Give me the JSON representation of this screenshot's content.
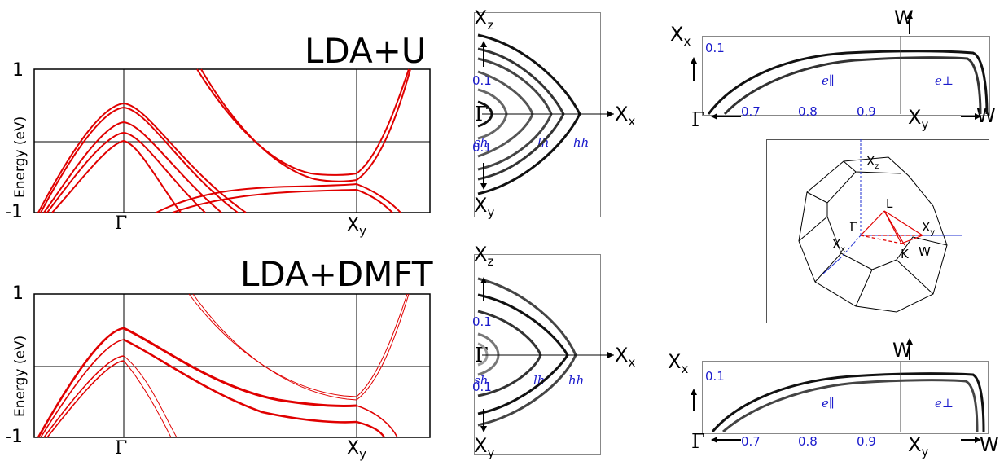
{
  "panel_top_left": {
    "title": "LDA+U",
    "ylabel": "Energy (eV)",
    "ytick_top": "1",
    "ytick_bottom": "-1",
    "xtick_gamma": "Γ",
    "xtick_x": "X",
    "xtick_x_sub": "y"
  },
  "panel_bottom_left": {
    "title": "LDA+DMFT",
    "ylabel": "Energy (eV)",
    "ytick_top": "1",
    "ytick_bottom": "-1",
    "xtick_gamma": "Γ",
    "xtick_x": "X",
    "xtick_x_sub": "y"
  },
  "panel_mid_top": {
    "top": "X",
    "top_sub": "z",
    "bottom": "X",
    "bottom_sub": "y",
    "right": "X",
    "right_sub": "x",
    "gamma": "Γ",
    "tick_upper": "0.1",
    "tick_lower": "0.1",
    "band_sh": "sh",
    "band_lh": "lh",
    "band_hh": "hh"
  },
  "panel_mid_bottom": {
    "top": "X",
    "top_sub": "z",
    "bottom": "X",
    "bottom_sub": "y",
    "right": "X",
    "right_sub": "x",
    "gamma": "Γ",
    "tick_upper": "0.1",
    "tick_lower": "0.1",
    "band_sh": "sh",
    "band_lh": "lh",
    "band_hh": "hh"
  },
  "panel_right_top": {
    "left": "X",
    "left_sub": "x",
    "top": "W",
    "ytick": "0.1",
    "gamma": "Γ",
    "xticks": [
      "0.7",
      "0.8",
      "0.9"
    ],
    "xy": "X",
    "xy_sub": "y",
    "w": "W",
    "e_par": "e∥",
    "e_perp": "e⊥"
  },
  "panel_right_bottom": {
    "left": "X",
    "left_sub": "x",
    "top": "W",
    "ytick": "0.1",
    "gamma": "Γ",
    "xticks": [
      "0.7",
      "0.8",
      "0.9"
    ],
    "xy": "X",
    "xy_sub": "y",
    "w": "W",
    "e_par": "e∥",
    "e_perp": "e⊥"
  },
  "brillouin_zone": {
    "labels": {
      "xz": "X",
      "xz_sub": "z",
      "L": "L",
      "gamma": "Γ",
      "xy": "X",
      "xy_sub": "y",
      "xx": "X",
      "xx_sub": "x",
      "K": "K",
      "W": "W"
    }
  },
  "colors": {
    "band_red": "#e00000",
    "label_blue": "#1a1acc"
  }
}
